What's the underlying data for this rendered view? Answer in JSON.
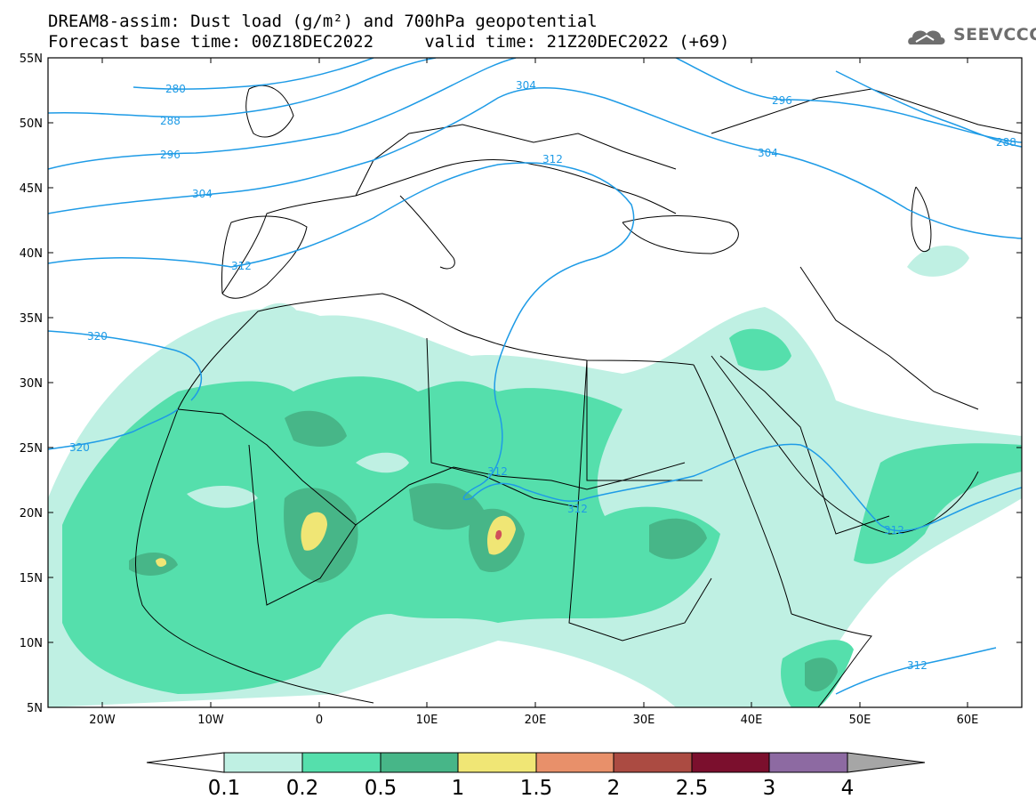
{
  "title": {
    "line1": "DREAM8-assim: Dust load (g/m²) and 700hPa geopotential",
    "line2": "Forecast base time: 00Z18DEC2022     valid time: 21Z20DEC2022 (+69)"
  },
  "logo": {
    "icon": "cloud-icon",
    "text": "SEEVCCC"
  },
  "map": {
    "lon_range": [
      -25,
      65
    ],
    "lat_range": [
      5,
      55
    ],
    "lat_labels": [
      "55N",
      "50N",
      "45N",
      "40N",
      "35N",
      "30N",
      "25N",
      "20N",
      "15N",
      "10N",
      "5N"
    ],
    "lon_labels": [
      "20W",
      "10W",
      "0",
      "10E",
      "20E",
      "30E",
      "40E",
      "50E",
      "60E"
    ],
    "contour_labels": [
      "280",
      "288",
      "296",
      "304",
      "312",
      "320",
      "320",
      "304",
      "312",
      "312",
      "312",
      "312",
      "296",
      "304",
      "288",
      "312"
    ],
    "contour_color": "#1e9be6"
  },
  "colorbar": {
    "labels": [
      "0.1",
      "0.2",
      "0.5",
      "1",
      "1.5",
      "2",
      "2.5",
      "3",
      "4"
    ],
    "colors": [
      "#bff0e3",
      "#55dfac",
      "#47b688",
      "#f0e675",
      "#e8906a",
      "#ab4b42",
      "#7b0f2d",
      "#8d6aa2",
      "#a6a6a6"
    ]
  },
  "dust_colors": {
    "low": "#bff0e3",
    "mid": "#55dfac",
    "high": "#47b688",
    "peak": "#f0e675",
    "max": "#d0505a"
  }
}
